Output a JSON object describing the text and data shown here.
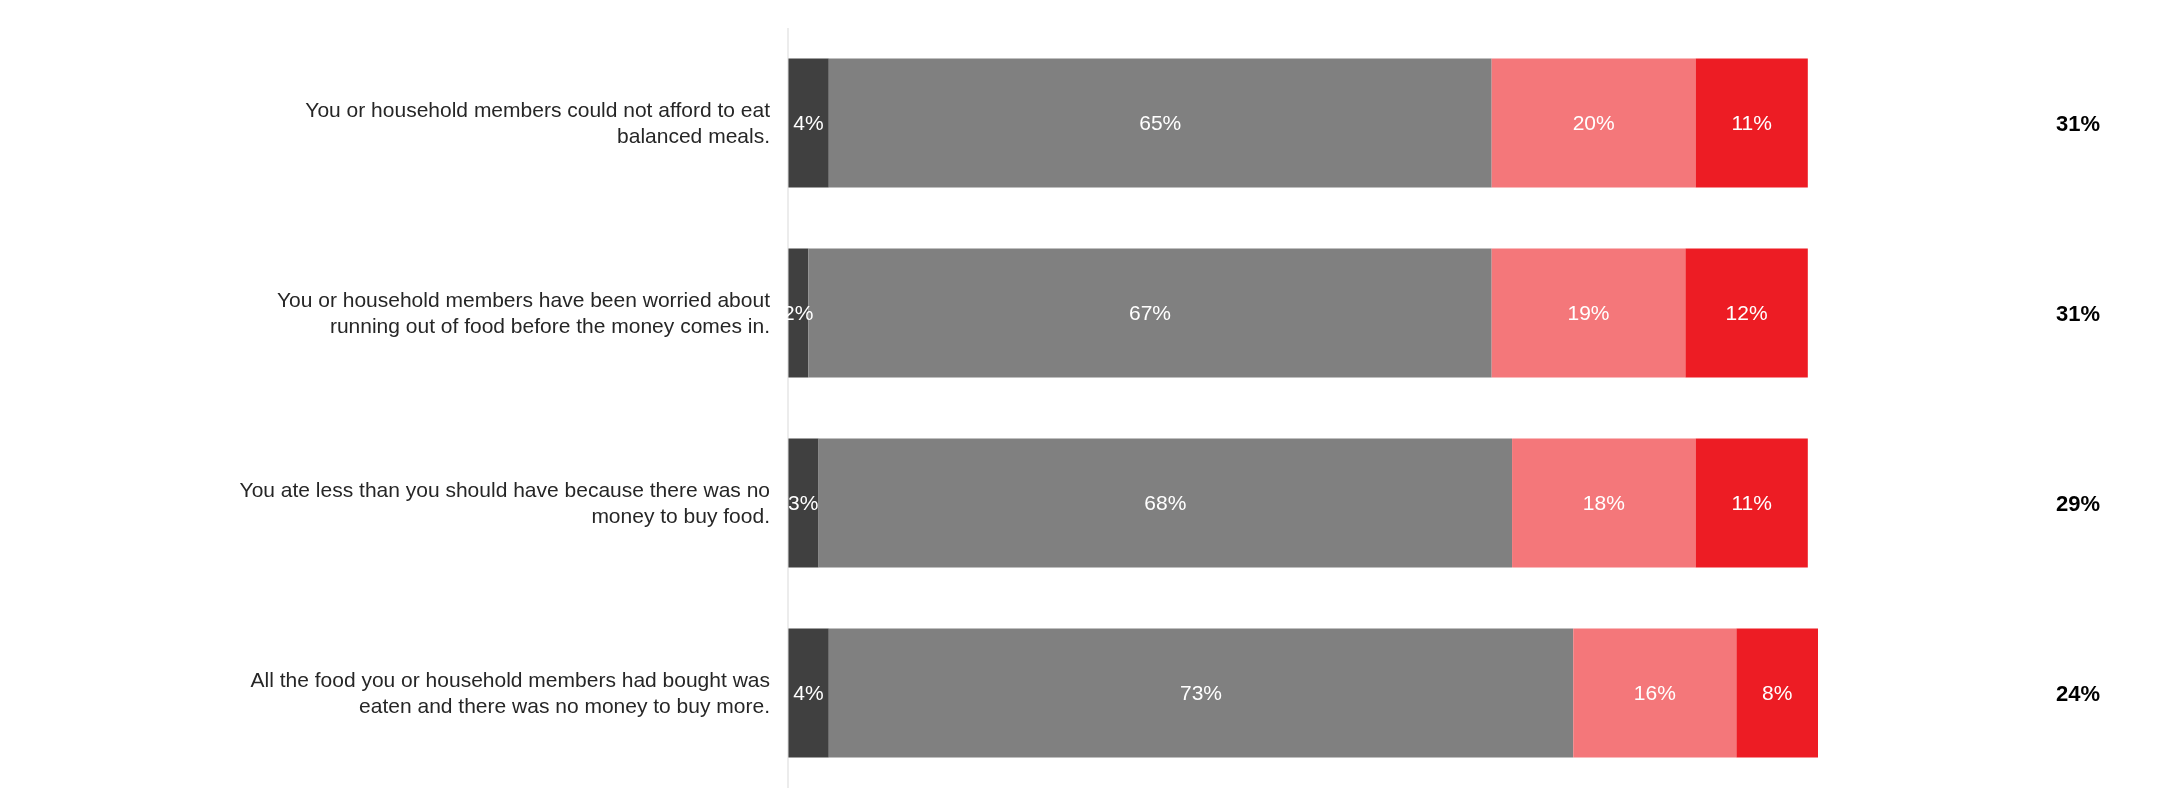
{
  "chart_data": {
    "type": "bar",
    "orientation": "horizontal",
    "stacked": true,
    "categories": [
      "You or household members could not afford to eat balanced meals.",
      "You or household members have been worried about running out of food before the money comes in.",
      "You ate less than you should have because there was no money to buy food.",
      "All the food you or household members had bought was eaten and there was no money to buy more."
    ],
    "series": [
      {
        "color": "#404040",
        "values": [
          4,
          2,
          3,
          4
        ],
        "value_labels": [
          "4%",
          "2%",
          "3%",
          "4%"
        ]
      },
      {
        "color": "#808080",
        "values": [
          65,
          67,
          68,
          73
        ],
        "value_labels": [
          "65%",
          "67%",
          "68%",
          "73%"
        ]
      },
      {
        "color": "#f4777a",
        "values": [
          20,
          19,
          18,
          16
        ],
        "value_labels": [
          "20%",
          "19%",
          "18%",
          "16%"
        ]
      },
      {
        "color": "#ed1c24",
        "values": [
          11,
          12,
          11,
          8
        ],
        "value_labels": [
          "11%",
          "12%",
          "11%",
          "8%"
        ]
      }
    ],
    "annotations": [
      "31%",
      "31%",
      "29%",
      "24%"
    ]
  }
}
